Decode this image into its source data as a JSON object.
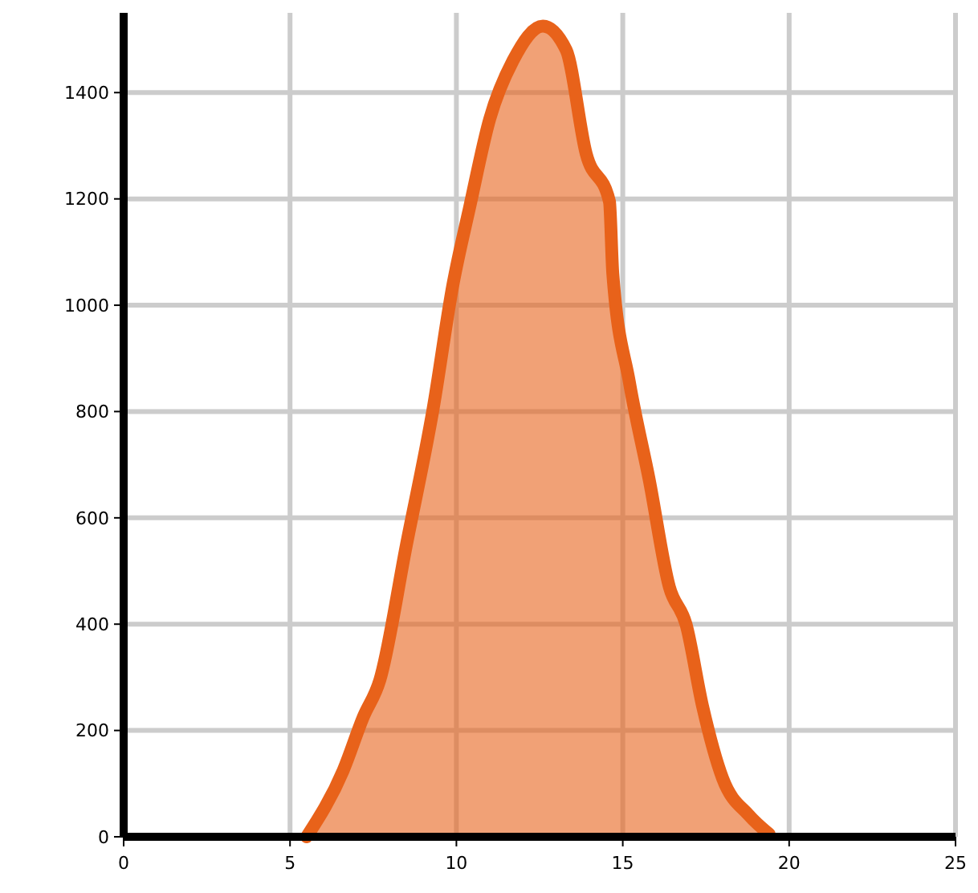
{
  "chart_data": {
    "type": "area",
    "x": [
      5.5,
      6.6,
      7.2,
      7.7,
      8.5,
      9.3,
      9.9,
      10.4,
      11.0,
      11.7,
      12.6,
      13.3,
      13.9,
      14.6,
      14.7,
      15.2,
      15.8,
      16.4,
      16.9,
      17.4,
      18.0,
      18.8,
      19.4
    ],
    "series": [
      {
        "color": "#e8621a",
        "values": [
          0,
          125,
          225,
          295,
          550,
          805,
          1040,
          1185,
          1350,
          1460,
          1525,
          1480,
          1285,
          1195,
          1060,
          855,
          670,
          470,
          400,
          245,
          110,
          40,
          5
        ]
      }
    ],
    "xlim": [
      0,
      25
    ],
    "xticks": [
      0,
      5,
      10,
      15,
      20,
      25
    ],
    "ylim": [
      0,
      1550
    ],
    "yticks": [
      0,
      200,
      400,
      600,
      800,
      1000,
      1200,
      1400
    ],
    "grid": true
  }
}
